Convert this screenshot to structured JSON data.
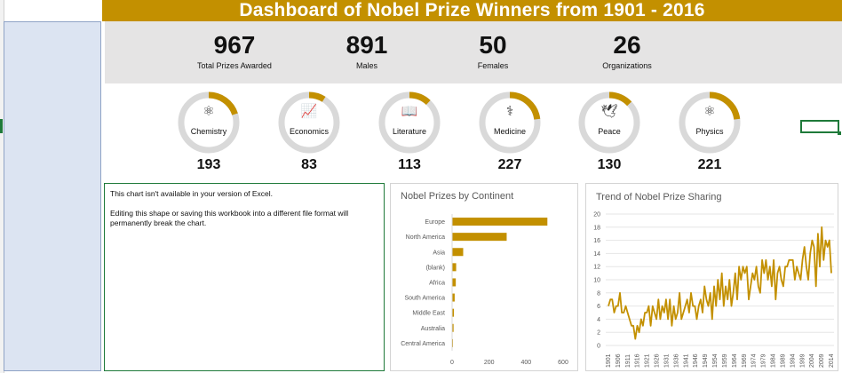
{
  "title": "Dashboard of Nobel Prize Winners from 1901 - 2016",
  "kpis": [
    {
      "value": "967",
      "label": "Total Prizes Awarded"
    },
    {
      "value": "891",
      "label": "Males"
    },
    {
      "value": "50",
      "label": "Females"
    },
    {
      "value": "26",
      "label": "Organizations"
    }
  ],
  "categories": [
    {
      "name": "Chemistry",
      "value": "193",
      "icon": "atom-molecule-icon",
      "fraction": 0.2
    },
    {
      "name": "Economics",
      "value": "83",
      "icon": "chart-money-icon",
      "fraction": 0.09
    },
    {
      "name": "Literature",
      "value": "113",
      "icon": "book-icon",
      "fraction": 0.12
    },
    {
      "name": "Medicine",
      "value": "227",
      "icon": "caduceus-icon",
      "fraction": 0.23
    },
    {
      "name": "Peace",
      "value": "130",
      "icon": "dove-icon",
      "fraction": 0.13
    },
    {
      "name": "Physics",
      "value": "221",
      "icon": "atom-icon",
      "fraction": 0.23
    }
  ],
  "warning": {
    "line1": "This chart isn't available in your version of Excel.",
    "line2": "Editing this shape or saving this workbook into a different file format will permanently break the chart."
  },
  "colors": {
    "accent": "#c39000",
    "ring_bg": "#d9d9d9",
    "band": "#e5e4e4"
  },
  "chart_data": [
    {
      "type": "bar",
      "title": "Nobel Prizes by Continent",
      "orientation": "horizontal",
      "categories": [
        "Europe",
        "North America",
        "Asia",
        "(blank)",
        "Africa",
        "South America",
        "Middle East",
        "Australia",
        "Central America"
      ],
      "values": [
        515,
        295,
        60,
        22,
        20,
        14,
        10,
        8,
        4
      ],
      "xlim": [
        0,
        600
      ],
      "xticks": [
        "0",
        "200",
        "400",
        "600"
      ]
    },
    {
      "type": "line",
      "title": "Trend of Nobel Prize Sharing",
      "ylim": [
        0,
        20
      ],
      "yticks": [
        "0",
        "2",
        "4",
        "6",
        "8",
        "10",
        "12",
        "14",
        "16",
        "18",
        "20"
      ],
      "xticks": [
        "1901",
        "1906",
        "1911",
        "1916",
        "1921",
        "1926",
        "1931",
        "1936",
        "1941",
        "1946",
        "1949",
        "1954",
        "1959",
        "1964",
        "1969",
        "1974",
        "1979",
        "1984",
        "1989",
        "1994",
        "1999",
        "2004",
        "2009",
        "2014"
      ],
      "values": [
        6,
        7,
        7,
        5,
        6,
        6,
        8,
        5,
        5,
        6,
        5,
        4,
        3,
        3,
        1,
        3,
        2,
        4,
        3,
        5,
        5,
        6,
        3,
        6,
        5,
        4,
        7,
        4,
        6,
        5,
        7,
        4,
        7,
        3,
        6,
        4,
        5,
        8,
        4,
        5,
        6,
        7,
        5,
        8,
        6,
        6,
        4,
        6,
        7,
        5,
        9,
        7,
        6,
        8,
        4,
        9,
        6,
        10,
        7,
        11,
        6,
        9,
        7,
        10,
        6,
        8,
        11,
        7,
        12,
        10,
        12,
        11,
        12,
        7,
        9,
        11,
        10,
        12,
        9,
        8,
        13,
        11,
        13,
        10,
        12,
        9,
        13,
        7,
        11,
        12,
        10,
        9,
        12,
        12,
        13,
        13,
        13,
        10,
        12,
        11,
        10,
        13,
        15,
        12,
        10,
        14,
        16,
        15,
        9,
        17,
        12,
        18,
        13,
        16,
        15,
        16,
        11
      ]
    }
  ]
}
